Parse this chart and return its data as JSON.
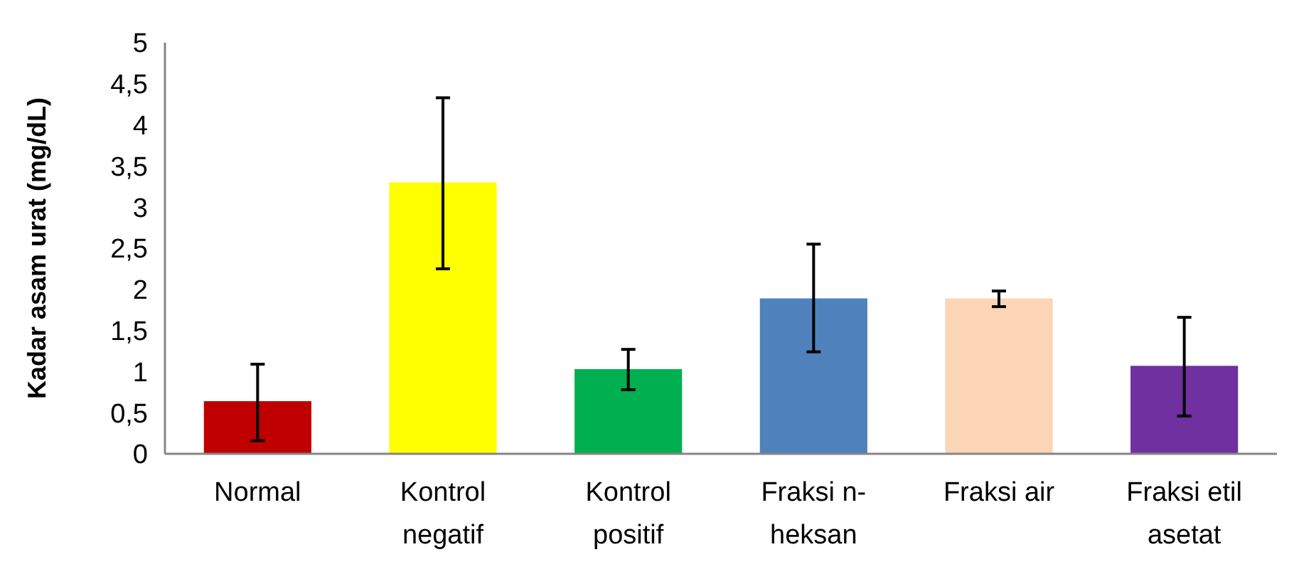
{
  "chart_data": {
    "type": "bar",
    "ylabel": "Kadar asam urat (mg/dL)",
    "categories": [
      "Normal",
      "Kontrol negatif",
      "Kontrol positif",
      "Fraksi n-heksan",
      "Fraksi air",
      "Fraksi etil asetat"
    ],
    "values": [
      0.64,
      3.3,
      1.03,
      1.89,
      1.89,
      1.07
    ],
    "colors": [
      "#c00000",
      "#ffff00",
      "#00b050",
      "#4f81bd",
      "#fbd5b5",
      "#7030a0"
    ],
    "errors": [
      [
        0.16,
        1.09
      ],
      [
        2.25,
        4.33
      ],
      [
        0.78,
        1.27
      ],
      [
        1.24,
        2.55
      ],
      [
        1.79,
        1.98
      ],
      [
        0.46,
        1.66
      ]
    ],
    "ylim": [
      0,
      5
    ],
    "yticks": [
      0,
      {
        "value": 0.5,
        "label": "0,5"
      },
      1,
      {
        "value": 1.5,
        "label": "1,5"
      },
      2,
      {
        "value": 2.5,
        "label": "2,5"
      },
      3,
      {
        "value": 3.5,
        "label": "3,5"
      },
      4,
      {
        "value": 4.5,
        "label": "4,5"
      },
      5
    ],
    "grid": false
  }
}
